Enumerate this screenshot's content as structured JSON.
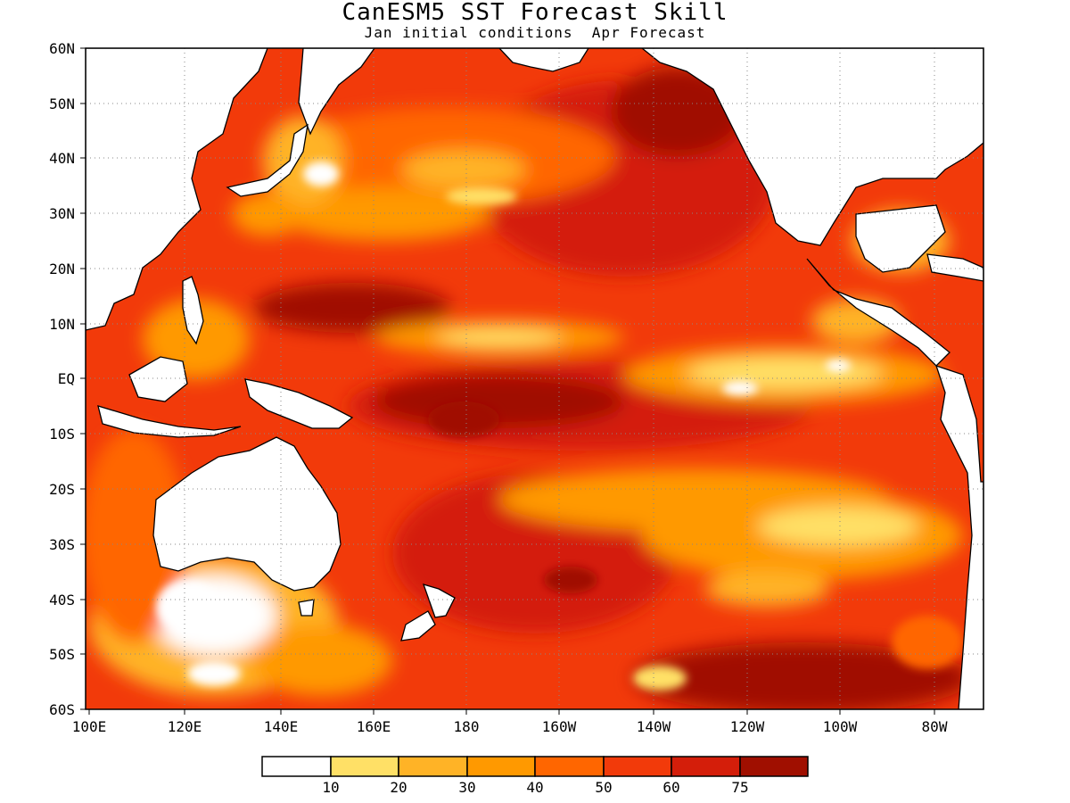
{
  "title": "CanESM5 SST Forecast Skill",
  "subtitle": "Jan initial conditions  Apr Forecast",
  "lat_labels": [
    "60N",
    "50N",
    "40N",
    "30N",
    "20N",
    "10N",
    "EQ",
    "10S",
    "20S",
    "30S",
    "40S",
    "50S",
    "60S"
  ],
  "lon_labels": [
    "100E",
    "120E",
    "140E",
    "160E",
    "180",
    "160W",
    "140W",
    "120W",
    "100W",
    "80W"
  ],
  "colorbar": {
    "colors": [
      "#ffffff",
      "#ffe066",
      "#ffb326",
      "#ff9900",
      "#ff6600",
      "#f23a0a",
      "#d41e0a",
      "#a00f00"
    ],
    "labels": [
      "10",
      "20",
      "30",
      "40",
      "50",
      "60",
      "75"
    ]
  },
  "chart_data": {
    "type": "heatmap",
    "title": "CanESM5 SST Forecast Skill",
    "subtitle": "Jan initial conditions  Apr Forecast",
    "lon_range": [
      "100E",
      "70W"
    ],
    "lat_range": [
      "60S",
      "60N"
    ],
    "levels": [
      10,
      20,
      30,
      40,
      50,
      60,
      75
    ],
    "grid": true
  }
}
